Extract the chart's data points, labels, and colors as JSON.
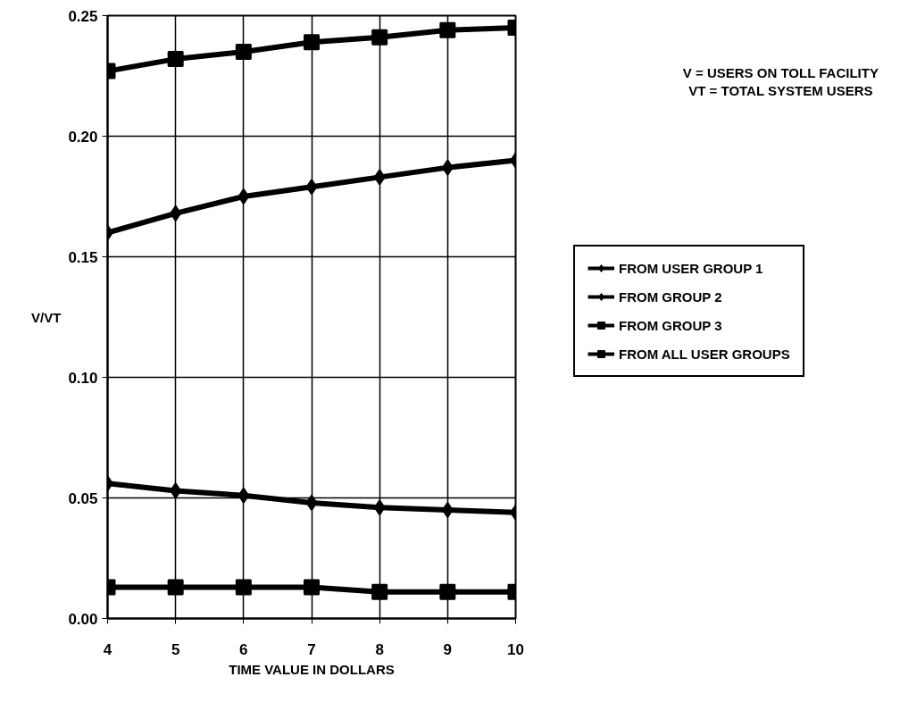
{
  "chart_data": {
    "type": "line",
    "xlabel": "TIME VALUE IN DOLLARS",
    "ylabel": "V/VT",
    "annotations": [
      "V = USERS ON TOLL FACILITY",
      "VT = TOTAL SYSTEM USERS"
    ],
    "x": [
      4,
      5,
      6,
      7,
      8,
      9,
      10
    ],
    "series": [
      {
        "name": "FROM USER GROUP 1",
        "color": "#000000",
        "marker": "diamond",
        "values": [
          0.16,
          0.168,
          0.175,
          0.179,
          0.183,
          0.187,
          0.19
        ]
      },
      {
        "name": "FROM GROUP 2",
        "color": "#000000",
        "marker": "diamond",
        "values": [
          0.056,
          0.053,
          0.051,
          0.048,
          0.046,
          0.045,
          0.044
        ]
      },
      {
        "name": "FROM GROUP 3",
        "color": "#000000",
        "marker": "square",
        "values": [
          0.013,
          0.013,
          0.013,
          0.013,
          0.011,
          0.011,
          0.011
        ]
      },
      {
        "name": "FROM ALL USER GROUPS",
        "color": "#000000",
        "marker": "square",
        "values": [
          0.227,
          0.232,
          0.235,
          0.239,
          0.241,
          0.244,
          0.245
        ]
      }
    ],
    "xlim": [
      4,
      10
    ],
    "xticks": [
      4,
      5,
      6,
      7,
      8,
      9,
      10
    ],
    "ylim": [
      0,
      0.25
    ],
    "yticks": [
      {
        "value": 0,
        "label": "0.00"
      },
      0.05,
      {
        "value": 0.1,
        "label": "0.10"
      },
      0.15,
      {
        "value": 0.2,
        "label": "0.20"
      },
      0.25
    ],
    "grid": true,
    "legend": "right",
    "line_style": "solid"
  }
}
